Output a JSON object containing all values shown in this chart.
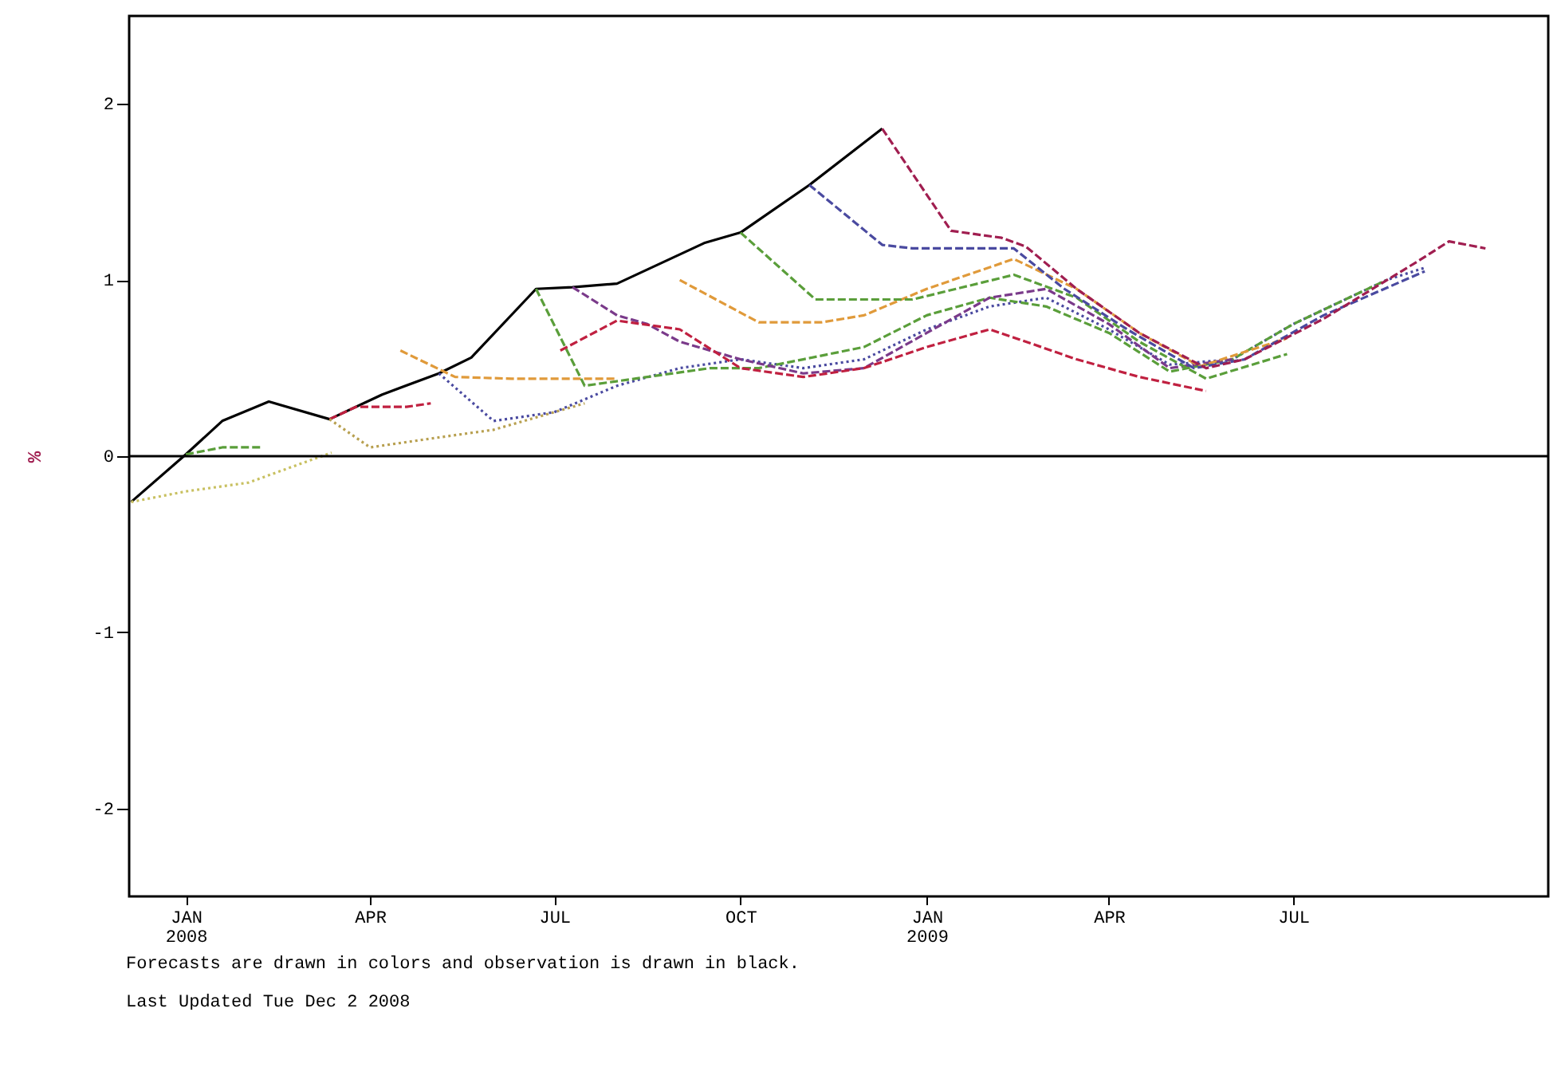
{
  "chart_data": {
    "type": "line",
    "ylabel": "%",
    "xlim": [
      "2007-12-04",
      "2009-11-04"
    ],
    "ylim": [
      -2.5,
      2.5
    ],
    "xticks": [
      {
        "value": "2008-01",
        "label": "JAN 2008"
      },
      {
        "value": "2008-04",
        "label": "APR"
      },
      {
        "value": "2008-07",
        "label": "JUL"
      },
      {
        "value": "2008-10",
        "label": "OCT"
      },
      {
        "value": "2009-01",
        "label": "JAN 2009"
      },
      {
        "value": "2009-04",
        "label": "APR"
      },
      {
        "value": "2009-07",
        "label": "JUL"
      }
    ],
    "yticks": [
      -2,
      -1,
      0,
      1,
      2
    ],
    "grid": false,
    "legend": false,
    "ref_lines": [
      {
        "axis": "y",
        "value": 0,
        "color": "#000000"
      }
    ],
    "annotations": [
      "Forecasts are drawn in colors and observation is drawn in black.",
      "Last Updated Tue Dec 2 2008"
    ],
    "series": [
      {
        "color": "#000000",
        "line_style": "solid",
        "x": [
          "2007-12-05",
          "2008-01-01",
          "2008-01-19",
          "2008-02-11",
          "2008-03-12",
          "2008-04-07",
          "2008-05-05",
          "2008-05-21",
          "2008-06-22",
          "2008-07-10",
          "2008-08-01",
          "2008-09-13",
          "2008-10-01",
          "2008-11-04",
          "2008-12-10"
        ],
        "values": [
          -0.26,
          0.01,
          0.2,
          0.31,
          0.21,
          0.35,
          0.47,
          0.56,
          0.95,
          0.96,
          0.98,
          1.21,
          1.27,
          1.54,
          1.86
        ]
      },
      {
        "color": "#c8c060",
        "line_style": "dotted",
        "x": [
          "2007-12-05",
          "2008-01-01",
          "2008-02-01",
          "2008-02-25",
          "2008-03-13"
        ],
        "values": [
          -0.26,
          -0.2,
          -0.15,
          -0.05,
          0.02
        ]
      },
      {
        "color": "#5a9e3a",
        "line_style": "dashed",
        "x": [
          "2008-01-01",
          "2008-01-19",
          "2008-02-07"
        ],
        "values": [
          0.01,
          0.05,
          0.05
        ]
      },
      {
        "color": "#c02040",
        "line_style": "dashed",
        "x": [
          "2008-03-12",
          "2008-03-25",
          "2008-04-19",
          "2008-05-01"
        ],
        "values": [
          0.21,
          0.28,
          0.28,
          0.3
        ]
      },
      {
        "color": "#b8a050",
        "line_style": "dotted",
        "x": [
          "2008-03-12",
          "2008-04-01",
          "2008-05-01",
          "2008-06-01",
          "2008-07-16"
        ],
        "values": [
          0.21,
          0.05,
          0.1,
          0.15,
          0.3
        ]
      },
      {
        "color": "#e09a3a",
        "line_style": "dashed",
        "x": [
          "2008-04-16",
          "2008-05-13",
          "2008-06-10",
          "2008-07-10",
          "2008-08-01"
        ],
        "values": [
          0.6,
          0.45,
          0.44,
          0.44,
          0.44
        ]
      },
      {
        "color": "#4a4aa0",
        "line_style": "dotted",
        "x": [
          "2008-05-05",
          "2008-06-01",
          "2008-07-01",
          "2008-08-01",
          "2008-09-01",
          "2008-10-01",
          "2008-11-01",
          "2008-12-01",
          "2009-01-01",
          "2009-02-01",
          "2009-03-01",
          "2009-04-01",
          "2009-05-01",
          "2009-06-01",
          "2009-07-01",
          "2009-08-16",
          "2009-09-04"
        ],
        "values": [
          0.47,
          0.2,
          0.25,
          0.4,
          0.5,
          0.55,
          0.5,
          0.55,
          0.72,
          0.85,
          0.9,
          0.72,
          0.52,
          0.55,
          0.75,
          1.0,
          1.07
        ]
      },
      {
        "color": "#5a9e3a",
        "line_style": "dashed",
        "x": [
          "2008-06-22",
          "2008-07-16",
          "2008-08-16",
          "2008-09-16",
          "2008-10-10",
          "2008-11-01",
          "2008-12-01",
          "2009-01-01",
          "2009-02-01",
          "2009-03-01",
          "2009-04-01",
          "2009-05-01",
          "2009-06-01",
          "2009-07-01",
          "2009-08-16"
        ],
        "values": [
          0.95,
          0.4,
          0.45,
          0.5,
          0.5,
          0.55,
          0.62,
          0.8,
          0.9,
          0.85,
          0.7,
          0.48,
          0.55,
          0.75,
          1.0
        ]
      },
      {
        "color": "#7a3a8a",
        "line_style": "dashed",
        "x": [
          "2008-07-10",
          "2008-08-01",
          "2008-08-16",
          "2008-09-01",
          "2008-10-01",
          "2008-11-01",
          "2008-12-01",
          "2009-01-01",
          "2009-02-01",
          "2009-03-01",
          "2009-04-01",
          "2009-05-01",
          "2009-06-01"
        ],
        "values": [
          0.96,
          0.8,
          0.75,
          0.65,
          0.55,
          0.47,
          0.5,
          0.7,
          0.9,
          0.95,
          0.75,
          0.5,
          0.55
        ]
      },
      {
        "color": "#c02040",
        "line_style": "dashed",
        "x": [
          "2008-07-04",
          "2008-08-01",
          "2008-09-01",
          "2008-10-01",
          "2008-11-01",
          "2008-12-01",
          "2009-01-01",
          "2009-02-01",
          "2009-02-19",
          "2009-03-16",
          "2009-04-16",
          "2009-05-19"
        ],
        "values": [
          0.6,
          0.77,
          0.72,
          0.5,
          0.45,
          0.5,
          0.62,
          0.72,
          0.65,
          0.55,
          0.45,
          0.37
        ]
      },
      {
        "color": "#e09a3a",
        "line_style": "dashed",
        "x": [
          "2008-09-01",
          "2008-10-10",
          "2008-11-10",
          "2008-12-01",
          "2009-01-01",
          "2009-02-13",
          "2009-03-16",
          "2009-04-16",
          "2009-05-16",
          "2009-06-28"
        ],
        "values": [
          1.0,
          0.76,
          0.76,
          0.8,
          0.95,
          1.12,
          0.95,
          0.7,
          0.51,
          0.67
        ]
      },
      {
        "color": "#5a9e3a",
        "line_style": "dashed",
        "x": [
          "2008-10-01",
          "2008-11-07",
          "2008-11-25",
          "2008-12-25",
          "2009-02-13",
          "2009-03-16",
          "2009-04-16",
          "2009-05-19",
          "2009-06-28"
        ],
        "values": [
          1.27,
          0.89,
          0.89,
          0.89,
          1.03,
          0.9,
          0.65,
          0.44,
          0.58
        ]
      },
      {
        "color": "#4a4aa0",
        "line_style": "dashed",
        "x": [
          "2008-11-04",
          "2008-12-10",
          "2008-12-25",
          "2009-02-13",
          "2009-03-10",
          "2009-04-10",
          "2009-05-13",
          "2009-06-07",
          "2009-07-16",
          "2009-09-04"
        ],
        "values": [
          1.54,
          1.2,
          1.18,
          1.18,
          0.95,
          0.72,
          0.5,
          0.55,
          0.8,
          1.05
        ]
      },
      {
        "color": "#a01e50",
        "line_style": "dashed",
        "x": [
          "2008-12-10",
          "2009-01-13",
          "2009-02-07",
          "2009-02-19",
          "2009-03-16",
          "2009-04-16",
          "2009-05-19",
          "2009-06-07",
          "2009-07-16",
          "2009-09-01",
          "2009-09-16",
          "2009-10-04"
        ],
        "values": [
          1.86,
          1.28,
          1.24,
          1.19,
          0.95,
          0.7,
          0.5,
          0.55,
          0.78,
          1.11,
          1.22,
          1.18
        ]
      }
    ]
  }
}
